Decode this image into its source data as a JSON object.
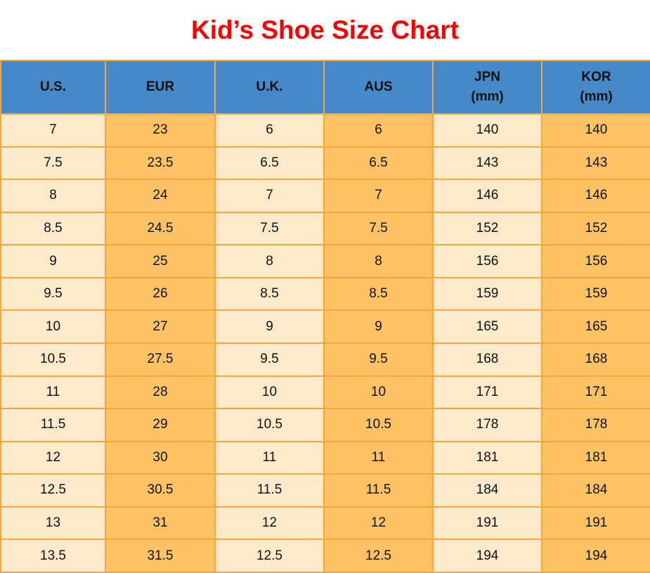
{
  "title": "Kid’s Shoe Size Chart",
  "colors": {
    "title_red": "#fb0000",
    "header_blue": "#4689c8",
    "cell_cream": "#fdeacb",
    "cell_orange": "#ffc264",
    "border_orange": "#f9a53c",
    "text_black": "#111111"
  },
  "chart_data": {
    "type": "table",
    "title": "Kid’s Shoe Size Chart",
    "columns": [
      {
        "label": "U.S.",
        "sub": ""
      },
      {
        "label": "EUR",
        "sub": ""
      },
      {
        "label": "U.K.",
        "sub": ""
      },
      {
        "label": "AUS",
        "sub": ""
      },
      {
        "label": "JPN",
        "sub": "(mm)"
      },
      {
        "label": "KOR",
        "sub": "(mm)"
      }
    ],
    "rows": [
      [
        "7",
        "23",
        "6",
        "6",
        "140",
        "140"
      ],
      [
        "7.5",
        "23.5",
        "6.5",
        "6.5",
        "143",
        "143"
      ],
      [
        "8",
        "24",
        "7",
        "7",
        "146",
        "146"
      ],
      [
        "8.5",
        "24.5",
        "7.5",
        "7.5",
        "152",
        "152"
      ],
      [
        "9",
        "25",
        "8",
        "8",
        "156",
        "156"
      ],
      [
        "9.5",
        "26",
        "8.5",
        "8.5",
        "159",
        "159"
      ],
      [
        "10",
        "27",
        "9",
        "9",
        "165",
        "165"
      ],
      [
        "10.5",
        "27.5",
        "9.5",
        "9.5",
        "168",
        "168"
      ],
      [
        "11",
        "28",
        "10",
        "10",
        "171",
        "171"
      ],
      [
        "11.5",
        "29",
        "10.5",
        "10.5",
        "178",
        "178"
      ],
      [
        "12",
        "30",
        "11",
        "11",
        "181",
        "181"
      ],
      [
        "12.5",
        "30.5",
        "11.5",
        "11.5",
        "184",
        "184"
      ],
      [
        "13",
        "31",
        "12",
        "12",
        "191",
        "191"
      ],
      [
        "13.5",
        "31.5",
        "12.5",
        "12.5",
        "194",
        "194"
      ]
    ]
  }
}
